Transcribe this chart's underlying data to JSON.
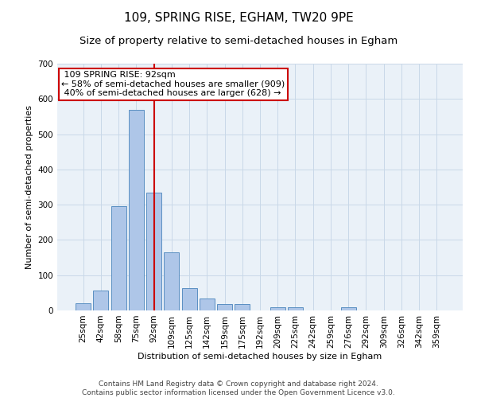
{
  "title": "109, SPRING RISE, EGHAM, TW20 9PE",
  "subtitle": "Size of property relative to semi-detached houses in Egham",
  "xlabel": "Distribution of semi-detached houses by size in Egham",
  "ylabel": "Number of semi-detached properties",
  "footer": "Contains HM Land Registry data © Crown copyright and database right 2024.\nContains public sector information licensed under the Open Government Licence v3.0.",
  "categories": [
    "25sqm",
    "42sqm",
    "58sqm",
    "75sqm",
    "92sqm",
    "109sqm",
    "125sqm",
    "142sqm",
    "159sqm",
    "175sqm",
    "192sqm",
    "209sqm",
    "225sqm",
    "242sqm",
    "259sqm",
    "276sqm",
    "292sqm",
    "309sqm",
    "326sqm",
    "342sqm",
    "359sqm"
  ],
  "values": [
    20,
    57,
    295,
    570,
    335,
    165,
    63,
    35,
    17,
    17,
    0,
    8,
    8,
    0,
    0,
    8,
    0,
    0,
    0,
    0,
    0
  ],
  "bar_color": "#aec6e8",
  "bar_edge_color": "#5a8fc2",
  "property_bar_index": 4,
  "property_sqm": 92,
  "property_label": "109 SPRING RISE: 92sqm",
  "pct_smaller": 58,
  "count_smaller": 909,
  "pct_larger": 40,
  "count_larger": 628,
  "line_color": "#cc0000",
  "annotation_box_edge": "#cc0000",
  "ylim": [
    0,
    700
  ],
  "yticks": [
    0,
    100,
    200,
    300,
    400,
    500,
    600,
    700
  ],
  "grid_color": "#c8d8e8",
  "bg_color": "#eaf1f8",
  "title_fontsize": 11,
  "subtitle_fontsize": 9.5,
  "axis_label_fontsize": 8,
  "tick_fontsize": 7.5,
  "annotation_fontsize": 8,
  "footer_fontsize": 6.5
}
